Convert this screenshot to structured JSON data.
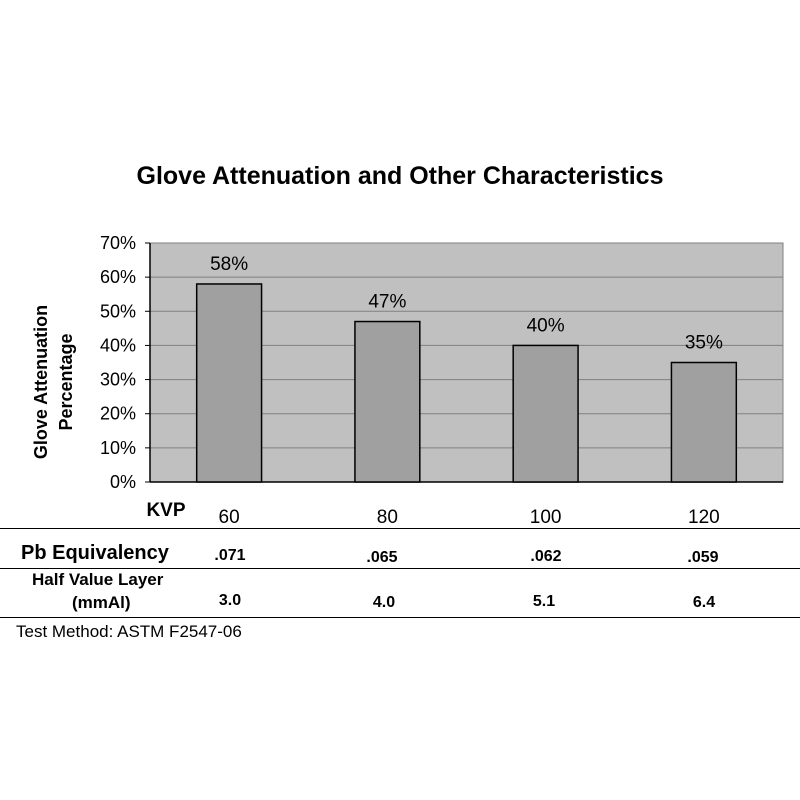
{
  "chart_data": {
    "type": "bar",
    "title": "Glove Attenuation and Other Characteristics",
    "xlabel": "KVP",
    "ylabel_lines": [
      "Glove Attenuation",
      "Percentage"
    ],
    "categories": [
      "60",
      "80",
      "100",
      "120"
    ],
    "values": [
      58,
      47,
      40,
      35
    ],
    "data_labels": [
      "58%",
      "47%",
      "40%",
      "35%"
    ],
    "ylim": [
      0,
      70
    ],
    "yticks": [
      0,
      10,
      20,
      30,
      40,
      50,
      60,
      70
    ],
    "ytick_labels": [
      "0%",
      "10%",
      "20%",
      "30%",
      "40%",
      "50%",
      "60%",
      "70%"
    ],
    "grid": true,
    "colors": {
      "plot_bg": "#c0c0c0",
      "bar_fill": "#a0a0a0",
      "grid": "#808080"
    }
  },
  "table": {
    "rows": [
      {
        "label_lines": [
          "Pb Equivalency"
        ],
        "values": [
          ".071",
          ".065",
          ".062",
          ".059"
        ]
      },
      {
        "label_lines": [
          "Half Value Layer",
          "(mmAl)"
        ],
        "values": [
          "3.0",
          "4.0",
          "5.1",
          "6.4"
        ]
      }
    ]
  },
  "footnote": "Test Method: ASTM F2547-06"
}
